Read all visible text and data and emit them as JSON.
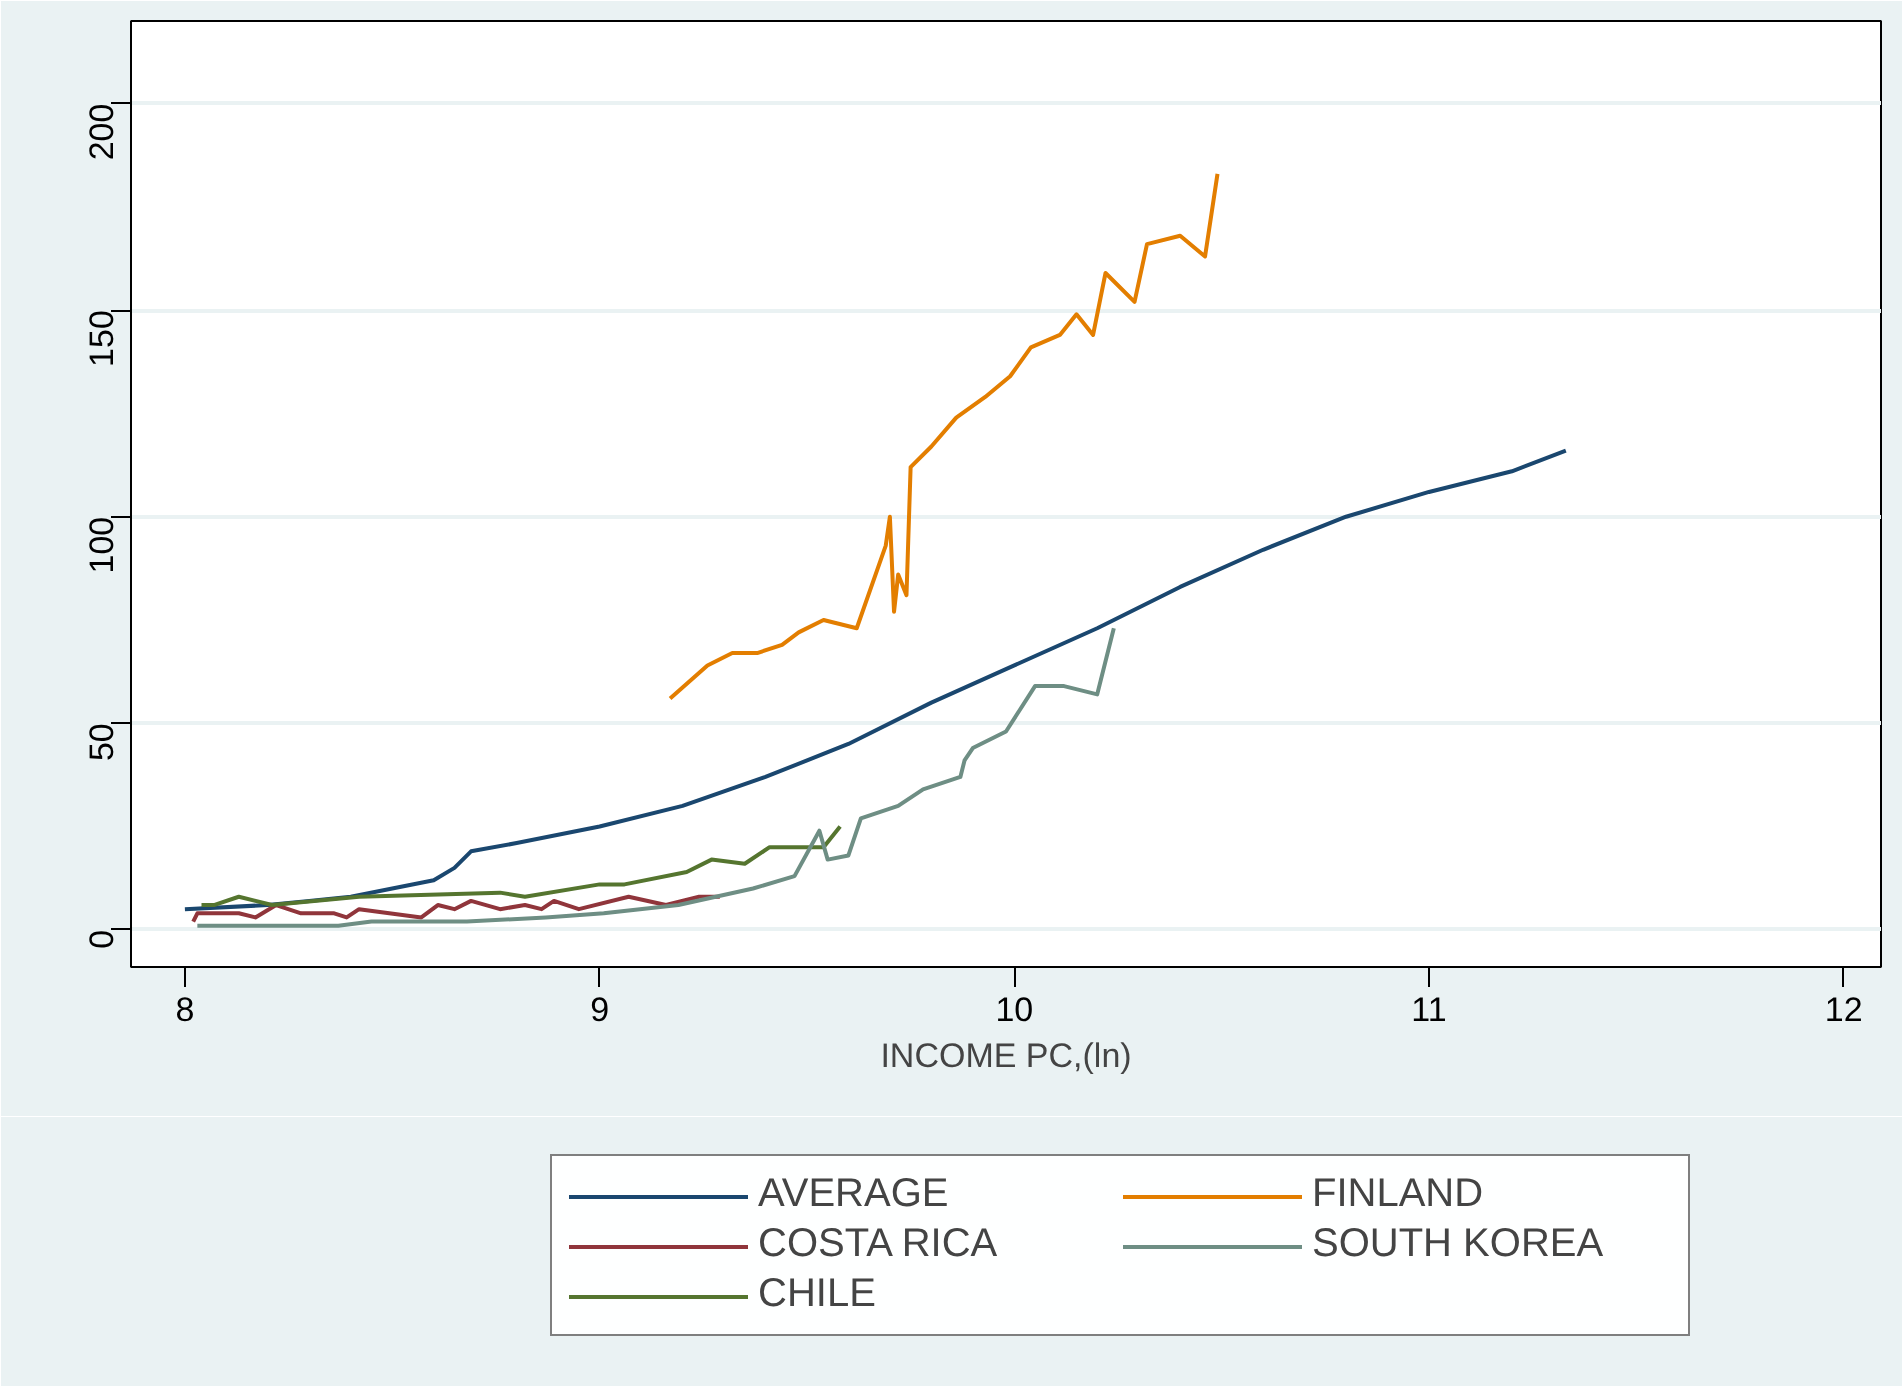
{
  "chart_data": {
    "type": "line",
    "xlabel": "INCOME PC,(ln)",
    "xlim": [
      7.87,
      12.09
    ],
    "ylim": [
      -9,
      220
    ],
    "xticks": [
      8,
      9,
      10,
      11,
      12
    ],
    "yticks": [
      0,
      50,
      100,
      150,
      200
    ],
    "grid": "y",
    "legend": "bottom",
    "marker": "none",
    "line_style": "solid",
    "series": [
      {
        "name": "AVERAGE",
        "color": "#1a476f",
        "x": [
          8.0,
          8.2,
          8.3,
          8.4,
          8.5,
          8.6,
          8.65,
          8.69,
          8.8,
          9.0,
          9.2,
          9.4,
          9.6,
          9.8,
          10.0,
          10.2,
          10.4,
          10.6,
          10.8,
          11.0,
          11.2,
          11.33
        ],
        "values": [
          5,
          6,
          7,
          8,
          10,
          12,
          15,
          19,
          21,
          25,
          30,
          37,
          45,
          55,
          64,
          73,
          83,
          92,
          100,
          106,
          111,
          116
        ]
      },
      {
        "name": "COSTA RICA",
        "color": "#90353b",
        "x": [
          8.02,
          8.03,
          8.13,
          8.17,
          8.22,
          8.28,
          8.36,
          8.39,
          8.42,
          8.57,
          8.61,
          8.65,
          8.69,
          8.76,
          8.82,
          8.86,
          8.89,
          8.95,
          9.07,
          9.16,
          9.24,
          9.29
        ],
        "values": [
          2,
          4,
          4,
          3,
          6,
          4,
          4,
          3,
          5,
          3,
          6,
          5,
          7,
          5,
          6,
          5,
          7,
          5,
          8,
          6,
          8,
          8
        ]
      },
      {
        "name": "CHILE",
        "color": "#55752f",
        "x": [
          8.04,
          8.07,
          8.13,
          8.21,
          8.42,
          8.76,
          8.82,
          9.0,
          9.06,
          9.21,
          9.27,
          9.35,
          9.41,
          9.54,
          9.58
        ],
        "values": [
          6,
          6,
          8,
          6,
          8,
          9,
          8,
          11,
          11,
          14,
          17,
          16,
          20,
          20,
          25
        ]
      },
      {
        "name": "FINLAND",
        "color": "#e37e00",
        "x": [
          9.17,
          9.26,
          9.32,
          9.38,
          9.44,
          9.48,
          9.54,
          9.62,
          9.69,
          9.7,
          9.71,
          9.72,
          9.74,
          9.75,
          9.8,
          9.86,
          9.93,
          9.99,
          10.04,
          10.11,
          10.15,
          10.19,
          10.22,
          10.29,
          10.32,
          10.4,
          10.46,
          10.49
        ],
        "values": [
          56,
          64,
          67,
          67,
          69,
          72,
          75,
          73,
          93,
          100,
          77,
          86,
          81,
          112,
          117,
          124,
          129,
          134,
          141,
          144,
          149,
          144,
          159,
          152,
          166,
          168,
          163,
          183
        ]
      },
      {
        "name": "SOUTH KOREA",
        "color": "#6e8e84",
        "x": [
          8.03,
          8.37,
          8.45,
          8.68,
          8.87,
          9.01,
          9.19,
          9.37,
          9.47,
          9.53,
          9.55,
          9.6,
          9.63,
          9.72,
          9.78,
          9.87,
          9.88,
          9.9,
          9.98,
          10.05,
          10.12,
          10.2,
          10.24
        ],
        "values": [
          1,
          1,
          2,
          2,
          3,
          4,
          6,
          10,
          13,
          24,
          17,
          18,
          27,
          30,
          34,
          37,
          41,
          44,
          48,
          59,
          59,
          57,
          73
        ]
      }
    ]
  }
}
